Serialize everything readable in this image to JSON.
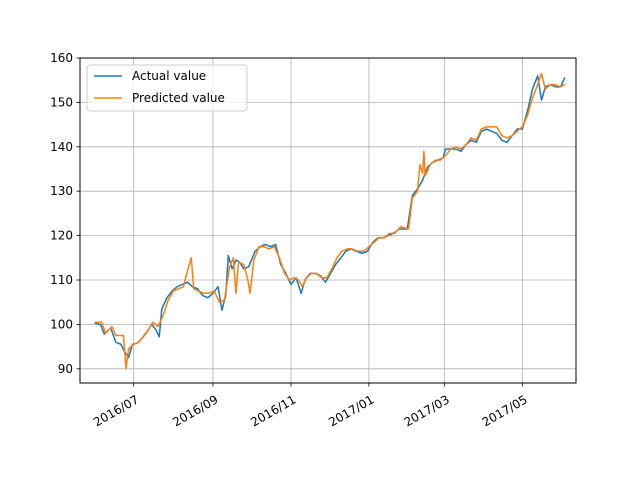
{
  "chart_data": {
    "type": "line",
    "title": "",
    "xlabel": "",
    "ylabel": "",
    "x_axis_type": "date",
    "xlim": [
      "2016-05-20",
      "2017-06-12"
    ],
    "ylim": [
      86.8,
      160.0
    ],
    "x_ticks": [
      {
        "date": "2016-07-01",
        "label": "2016/07"
      },
      {
        "date": "2016-09-01",
        "label": "2016/09"
      },
      {
        "date": "2016-11-01",
        "label": "2016/11"
      },
      {
        "date": "2017-01-01",
        "label": "2017/01"
      },
      {
        "date": "2017-03-01",
        "label": "2017/03"
      },
      {
        "date": "2017-05-01",
        "label": "2017/05"
      }
    ],
    "y_ticks": [
      90,
      100,
      110,
      120,
      130,
      140,
      150,
      160
    ],
    "grid": true,
    "legend": "top-left",
    "series": [
      {
        "name": "Actual value",
        "color": "#1f77b4",
        "points": [
          [
            "2016-06-01",
            100.2
          ],
          [
            "2016-06-05",
            100.0
          ],
          [
            "2016-06-08",
            97.8
          ],
          [
            "2016-06-13",
            99.2
          ],
          [
            "2016-06-17",
            96.0
          ],
          [
            "2016-06-21",
            95.5
          ],
          [
            "2016-06-24",
            93.8
          ],
          [
            "2016-06-27",
            92.5
          ],
          [
            "2016-06-30",
            95.5
          ],
          [
            "2016-07-04",
            95.8
          ],
          [
            "2016-07-08",
            97.0
          ],
          [
            "2016-07-12",
            98.5
          ],
          [
            "2016-07-15",
            100.0
          ],
          [
            "2016-07-18",
            99.0
          ],
          [
            "2016-07-21",
            97.2
          ],
          [
            "2016-07-23",
            103.5
          ],
          [
            "2016-07-27",
            106.0
          ],
          [
            "2016-07-31",
            107.5
          ],
          [
            "2016-08-04",
            108.5
          ],
          [
            "2016-08-08",
            109.0
          ],
          [
            "2016-08-12",
            109.5
          ],
          [
            "2016-08-16",
            108.5
          ],
          [
            "2016-08-20",
            108.0
          ],
          [
            "2016-08-24",
            106.5
          ],
          [
            "2016-08-28",
            106.0
          ],
          [
            "2016-09-01",
            107.0
          ],
          [
            "2016-09-05",
            108.5
          ],
          [
            "2016-09-08",
            103.2
          ],
          [
            "2016-09-11",
            106.5
          ],
          [
            "2016-09-13",
            115.5
          ],
          [
            "2016-09-16",
            112.5
          ],
          [
            "2016-09-19",
            114.5
          ],
          [
            "2016-09-22",
            114.0
          ],
          [
            "2016-09-25",
            112.5
          ],
          [
            "2016-09-29",
            113.0
          ],
          [
            "2016-10-04",
            116.5
          ],
          [
            "2016-10-08",
            117.5
          ],
          [
            "2016-10-12",
            118.0
          ],
          [
            "2016-10-16",
            117.5
          ],
          [
            "2016-10-20",
            118.0
          ],
          [
            "2016-10-24",
            113.5
          ],
          [
            "2016-10-28",
            111.5
          ],
          [
            "2016-11-01",
            109.0
          ],
          [
            "2016-11-05",
            110.5
          ],
          [
            "2016-11-09",
            107.0
          ],
          [
            "2016-11-12",
            110.0
          ],
          [
            "2016-11-16",
            111.5
          ],
          [
            "2016-11-20",
            111.5
          ],
          [
            "2016-11-24",
            111.0
          ],
          [
            "2016-11-28",
            109.5
          ],
          [
            "2016-12-02",
            111.5
          ],
          [
            "2016-12-06",
            113.5
          ],
          [
            "2016-12-10",
            115.0
          ],
          [
            "2016-12-14",
            116.5
          ],
          [
            "2016-12-18",
            117.0
          ],
          [
            "2016-12-22",
            116.5
          ],
          [
            "2016-12-27",
            116.0
          ],
          [
            "2016-12-31",
            116.5
          ],
          [
            "2017-01-04",
            118.5
          ],
          [
            "2017-01-08",
            119.5
          ],
          [
            "2017-01-12",
            119.5
          ],
          [
            "2017-01-16",
            120.0
          ],
          [
            "2017-01-20",
            120.5
          ],
          [
            "2017-01-25",
            121.5
          ],
          [
            "2017-01-31",
            121.5
          ],
          [
            "2017-02-04",
            129.0
          ],
          [
            "2017-02-08",
            130.5
          ],
          [
            "2017-02-12",
            132.5
          ],
          [
            "2017-02-16",
            135.5
          ],
          [
            "2017-02-20",
            136.5
          ],
          [
            "2017-02-24",
            137.0
          ],
          [
            "2017-02-28",
            137.5
          ],
          [
            "2017-03-02",
            139.5
          ],
          [
            "2017-03-06",
            139.5
          ],
          [
            "2017-03-10",
            139.5
          ],
          [
            "2017-03-14",
            139.0
          ],
          [
            "2017-03-18",
            140.5
          ],
          [
            "2017-03-22",
            141.5
          ],
          [
            "2017-03-26",
            141.0
          ],
          [
            "2017-03-30",
            143.5
          ],
          [
            "2017-04-03",
            144.0
          ],
          [
            "2017-04-07",
            143.5
          ],
          [
            "2017-04-11",
            143.0
          ],
          [
            "2017-04-15",
            141.5
          ],
          [
            "2017-04-19",
            141.0
          ],
          [
            "2017-04-23",
            142.5
          ],
          [
            "2017-04-27",
            144.0
          ],
          [
            "2017-05-01",
            144.0
          ],
          [
            "2017-05-05",
            148.0
          ],
          [
            "2017-05-09",
            153.0
          ],
          [
            "2017-05-13",
            156.0
          ],
          [
            "2017-05-16",
            150.5
          ],
          [
            "2017-05-19",
            153.5
          ],
          [
            "2017-05-23",
            154.0
          ],
          [
            "2017-05-27",
            153.5
          ],
          [
            "2017-05-31",
            153.5
          ],
          [
            "2017-06-03",
            155.5
          ]
        ]
      },
      {
        "name": "Predicted value",
        "color": "#ff7f0e",
        "points": [
          [
            "2016-06-01",
            100.5
          ],
          [
            "2016-06-06",
            100.5
          ],
          [
            "2016-06-09",
            98.0
          ],
          [
            "2016-06-14",
            99.5
          ],
          [
            "2016-06-17",
            97.5
          ],
          [
            "2016-06-23",
            97.5
          ],
          [
            "2016-06-25",
            90.0
          ],
          [
            "2016-06-27",
            94.5
          ],
          [
            "2016-07-01",
            95.5
          ],
          [
            "2016-07-05",
            96.0
          ],
          [
            "2016-07-09",
            97.5
          ],
          [
            "2016-07-13",
            99.0
          ],
          [
            "2016-07-16",
            100.5
          ],
          [
            "2016-07-20",
            99.5
          ],
          [
            "2016-07-24",
            102.0
          ],
          [
            "2016-07-28",
            105.5
          ],
          [
            "2016-08-01",
            107.5
          ],
          [
            "2016-08-05",
            108.0
          ],
          [
            "2016-08-09",
            108.5
          ],
          [
            "2016-08-12",
            112.0
          ],
          [
            "2016-08-15",
            115.0
          ],
          [
            "2016-08-17",
            108.0
          ],
          [
            "2016-08-21",
            107.5
          ],
          [
            "2016-08-25",
            107.0
          ],
          [
            "2016-08-29",
            107.0
          ],
          [
            "2016-09-02",
            107.5
          ],
          [
            "2016-09-06",
            105.0
          ],
          [
            "2016-09-10",
            105.5
          ],
          [
            "2016-09-14",
            113.0
          ],
          [
            "2016-09-17",
            115.0
          ],
          [
            "2016-09-19",
            107.0
          ],
          [
            "2016-09-21",
            114.0
          ],
          [
            "2016-09-25",
            113.5
          ],
          [
            "2016-09-28",
            110.5
          ],
          [
            "2016-09-30",
            107.0
          ],
          [
            "2016-10-03",
            114.5
          ],
          [
            "2016-10-07",
            117.5
          ],
          [
            "2016-10-11",
            117.5
          ],
          [
            "2016-10-15",
            117.0
          ],
          [
            "2016-10-19",
            117.5
          ],
          [
            "2016-10-23",
            115.0
          ],
          [
            "2016-10-27",
            111.5
          ],
          [
            "2016-10-31",
            110.0
          ],
          [
            "2016-11-03",
            110.5
          ],
          [
            "2016-11-07",
            110.0
          ],
          [
            "2016-11-10",
            108.5
          ],
          [
            "2016-11-13",
            110.5
          ],
          [
            "2016-11-17",
            111.5
          ],
          [
            "2016-11-21",
            111.5
          ],
          [
            "2016-11-25",
            110.5
          ],
          [
            "2016-11-29",
            110.5
          ],
          [
            "2016-12-03",
            112.5
          ],
          [
            "2016-12-07",
            115.0
          ],
          [
            "2016-12-11",
            116.5
          ],
          [
            "2016-12-15",
            117.0
          ],
          [
            "2016-12-19",
            117.0
          ],
          [
            "2016-12-23",
            116.5
          ],
          [
            "2016-12-28",
            116.5
          ],
          [
            "2017-01-01",
            117.5
          ],
          [
            "2017-01-05",
            118.5
          ],
          [
            "2017-01-09",
            119.5
          ],
          [
            "2017-01-13",
            119.5
          ],
          [
            "2017-01-17",
            120.5
          ],
          [
            "2017-01-21",
            120.5
          ],
          [
            "2017-01-26",
            122.0
          ],
          [
            "2017-02-01",
            121.5
          ],
          [
            "2017-02-04",
            128.5
          ],
          [
            "2017-02-08",
            130.0
          ],
          [
            "2017-02-10",
            136.0
          ],
          [
            "2017-02-12",
            134.0
          ],
          [
            "2017-02-13",
            139.0
          ],
          [
            "2017-02-14",
            133.5
          ],
          [
            "2017-02-18",
            136.0
          ],
          [
            "2017-02-22",
            137.0
          ],
          [
            "2017-02-26",
            137.0
          ],
          [
            "2017-03-02",
            138.0
          ],
          [
            "2017-03-06",
            139.5
          ],
          [
            "2017-03-10",
            140.0
          ],
          [
            "2017-03-14",
            139.5
          ],
          [
            "2017-03-18",
            140.5
          ],
          [
            "2017-03-22",
            142.0
          ],
          [
            "2017-03-26",
            141.5
          ],
          [
            "2017-03-30",
            144.0
          ],
          [
            "2017-04-03",
            144.5
          ],
          [
            "2017-04-07",
            144.5
          ],
          [
            "2017-04-11",
            144.5
          ],
          [
            "2017-04-15",
            142.5
          ],
          [
            "2017-04-19",
            142.0
          ],
          [
            "2017-04-23",
            142.5
          ],
          [
            "2017-04-27",
            143.5
          ],
          [
            "2017-05-01",
            144.5
          ],
          [
            "2017-05-05",
            147.0
          ],
          [
            "2017-05-09",
            151.0
          ],
          [
            "2017-05-13",
            154.0
          ],
          [
            "2017-05-16",
            156.5
          ],
          [
            "2017-05-19",
            153.0
          ],
          [
            "2017-05-23",
            154.0
          ],
          [
            "2017-05-27",
            154.0
          ],
          [
            "2017-05-31",
            153.5
          ],
          [
            "2017-06-03",
            154.0
          ]
        ]
      }
    ]
  }
}
